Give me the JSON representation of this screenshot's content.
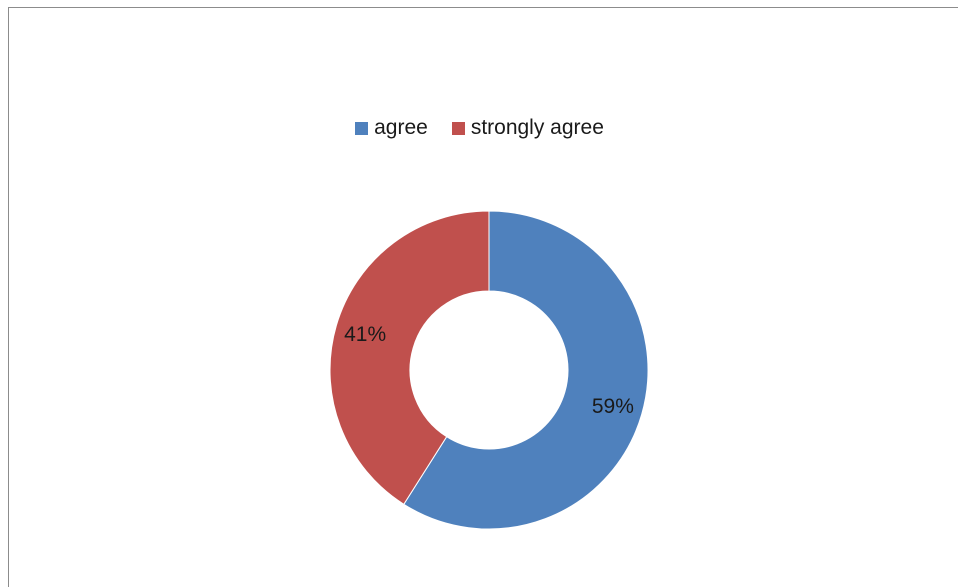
{
  "chart_data": {
    "type": "pie",
    "donut": true,
    "title": "",
    "legend_position": "top",
    "series": [
      {
        "name": "agree",
        "value": 59,
        "label": "59%",
        "color": "#4f81bd"
      },
      {
        "name": "strongly agree",
        "value": 41,
        "label": "41%",
        "color": "#c0504d"
      }
    ]
  }
}
